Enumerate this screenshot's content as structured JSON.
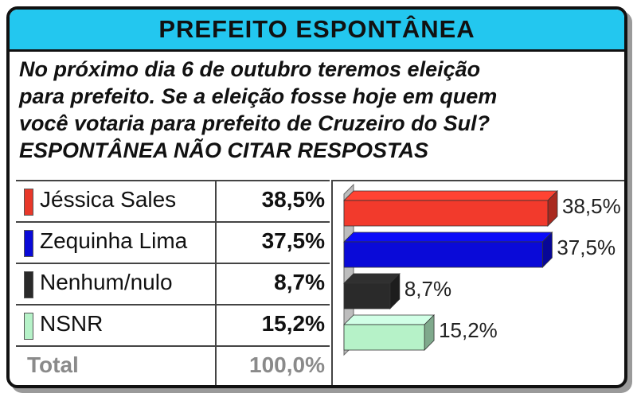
{
  "title": "PREFEITO ESPONTÂNEA",
  "question_lines": [
    "No próximo dia 6 de outubro teremos eleição",
    "para prefeito. Se a eleição fosse hoje em quem",
    "você votaria para prefeito de Cruzeiro do Sul?",
    "ESPONTÂNEA NÃO CITAR RESPOSTAS"
  ],
  "table": {
    "rows": [
      {
        "name": "Jéssica Sales",
        "pct": "38,5%",
        "color": "#e8382a"
      },
      {
        "name": "Zequinha Lima",
        "pct": "37,5%",
        "color": "#0a0ad8"
      },
      {
        "name": "Nenhum/nulo",
        "pct": "8,7%",
        "color": "#2a2a2a"
      },
      {
        "name": "NSNR",
        "pct": "15,2%",
        "color": "#b6f2c8"
      }
    ],
    "total": {
      "name": "Total",
      "pct": "100,0%"
    }
  },
  "chart_data": {
    "type": "bar",
    "orientation": "horizontal",
    "categories": [
      "Jéssica Sales",
      "Zequinha Lima",
      "Nenhum/nulo",
      "NSNR"
    ],
    "values": [
      38.5,
      37.5,
      8.7,
      15.2
    ],
    "labels": [
      "38,5%",
      "37,5%",
      "8,7%",
      "15,2%"
    ],
    "colors": [
      "#f23a2c",
      "#0a0ad8",
      "#2a2a2a",
      "#b6f2c8"
    ],
    "xlim": [
      0,
      38.5
    ],
    "grid": false,
    "legend": "none",
    "style": "3d"
  }
}
